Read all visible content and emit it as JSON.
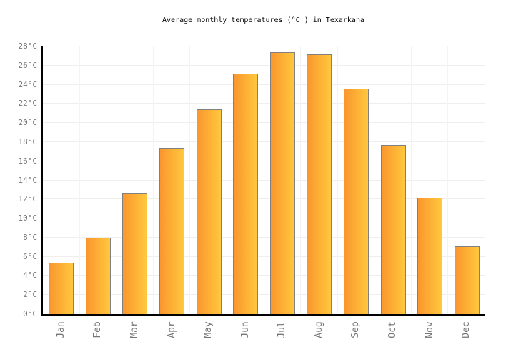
{
  "chart_data": {
    "type": "bar",
    "title": "Average monthly temperatures (°C ) in Texarkana",
    "categories": [
      "Jan",
      "Feb",
      "Mar",
      "Apr",
      "May",
      "Jun",
      "Jul",
      "Aug",
      "Sep",
      "Oct",
      "Nov",
      "Dec"
    ],
    "values": [
      5.4,
      8.0,
      12.6,
      17.4,
      21.4,
      25.2,
      27.4,
      27.2,
      23.6,
      17.7,
      12.2,
      7.1
    ],
    "unit": "°C",
    "xlabel": "",
    "ylabel": "",
    "ylim": [
      0,
      28
    ],
    "ytick_step": 2,
    "ytick_labels": [
      "0°C",
      "2°C",
      "4°C",
      "6°C",
      "8°C",
      "10°C",
      "12°C",
      "14°C",
      "16°C",
      "18°C",
      "20°C",
      "22°C",
      "24°C",
      "26°C",
      "28°C"
    ],
    "grid": true,
    "legend": false,
    "colors": {
      "bar_gradient_start": "#FA962E",
      "bar_gradient_end": "#FFC83D",
      "bar_border": "#808080",
      "gridline_h": "#F0EDED",
      "gridline_v": "#F4F2F2",
      "axis": "#000000",
      "tick_label": "#767676",
      "title": "#000000"
    }
  }
}
